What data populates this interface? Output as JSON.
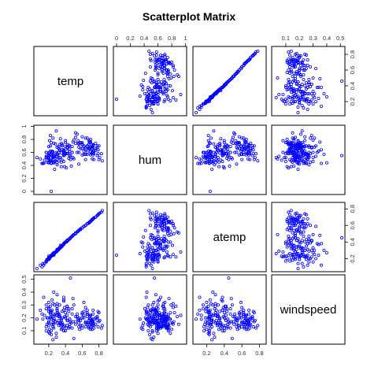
{
  "chart_data": {
    "type": "scatter",
    "title": "Scatterplot Matrix",
    "variables": [
      "temp",
      "hum",
      "atemp",
      "windspeed"
    ],
    "ranges": {
      "temp": [
        0.06,
        0.86
      ],
      "hum": [
        0.0,
        0.97
      ],
      "atemp": [
        0.08,
        0.84
      ],
      "windspeed": [
        0.02,
        0.51
      ]
    },
    "ticks": {
      "temp": [
        0.2,
        0.4,
        0.6,
        0.8
      ],
      "hum": [
        0.0,
        0.2,
        0.4,
        0.6,
        0.8,
        1.0
      ],
      "atemp": [
        0.2,
        0.4,
        0.6,
        0.8
      ],
      "windspeed": [
        0.1,
        0.2,
        0.3,
        0.4,
        0.5
      ]
    },
    "axis_positions": {
      "top": [
        "hum",
        "windspeed"
      ],
      "bottom": [
        "temp",
        "atemp"
      ],
      "left": [
        "hum",
        "windspeed"
      ],
      "right": [
        "temp",
        "atemp"
      ]
    },
    "point_style": {
      "shape": "open-circle",
      "color": "#0000ff"
    },
    "points": {
      "temp": [
        0.34,
        0.36,
        0.2,
        0.2,
        0.23,
        0.2,
        0.2,
        0.17,
        0.14,
        0.15,
        0.17,
        0.17,
        0.17,
        0.21,
        0.23,
        0.23,
        0.18,
        0.22,
        0.29,
        0.26,
        0.26,
        0.12,
        0.06,
        0.1,
        0.23,
        0.22,
        0.2,
        0.2,
        0.2,
        0.22,
        0.2,
        0.21,
        0.26,
        0.19,
        0.2,
        0.25,
        0.29,
        0.26,
        0.25,
        0.18,
        0.13,
        0.24,
        0.38,
        0.35,
        0.41,
        0.27,
        0.33,
        0.42,
        0.52,
        0.4,
        0.27,
        0.39,
        0.22,
        0.27,
        0.3,
        0.3,
        0.35,
        0.36,
        0.31,
        0.25,
        0.32,
        0.3,
        0.34,
        0.32,
        0.38,
        0.46,
        0.36,
        0.33,
        0.39,
        0.35,
        0.45,
        0.54,
        0.47,
        0.38,
        0.44,
        0.56,
        0.45,
        0.43,
        0.4,
        0.45,
        0.39,
        0.42,
        0.48,
        0.49,
        0.62,
        0.55,
        0.58,
        0.66,
        0.64,
        0.57,
        0.6,
        0.6,
        0.56,
        0.56,
        0.66,
        0.69,
        0.72,
        0.6,
        0.68,
        0.72,
        0.7,
        0.7,
        0.72,
        0.71,
        0.78,
        0.79,
        0.79,
        0.72,
        0.73,
        0.7,
        0.69,
        0.66,
        0.64,
        0.66,
        0.74,
        0.78,
        0.84,
        0.76,
        0.73,
        0.69,
        0.68,
        0.66,
        0.7,
        0.76,
        0.8,
        0.81,
        0.83,
        0.78,
        0.73,
        0.74,
        0.76,
        0.8,
        0.73,
        0.7,
        0.68,
        0.71,
        0.73,
        0.74,
        0.72,
        0.7,
        0.68,
        0.64,
        0.6,
        0.62,
        0.64,
        0.66,
        0.6,
        0.55,
        0.5,
        0.52,
        0.54,
        0.58,
        0.62,
        0.64,
        0.62,
        0.6,
        0.56,
        0.48,
        0.42,
        0.42,
        0.45,
        0.49,
        0.52,
        0.48,
        0.44,
        0.42,
        0.4,
        0.36,
        0.38,
        0.42,
        0.38,
        0.32,
        0.33,
        0.3,
        0.28,
        0.3,
        0.33,
        0.36,
        0.4,
        0.44,
        0.38,
        0.3,
        0.24,
        0.26,
        0.22,
        0.24,
        0.3,
        0.35,
        0.38,
        0.32,
        0.28,
        0.25,
        0.23,
        0.3,
        0.26,
        0.22,
        0.29,
        0.46,
        0.5,
        0.25,
        0.23
      ],
      "hum": [
        0.81,
        0.7,
        0.44,
        0.59,
        0.44,
        0.52,
        0.5,
        0.54,
        0.43,
        0.48,
        0.6,
        0.6,
        0.52,
        0.78,
        0.43,
        0.48,
        0.54,
        0.86,
        0.93,
        0.56,
        0.45,
        0.43,
        0.52,
        0.5,
        0.75,
        0.62,
        0.54,
        0.56,
        0.69,
        0.7,
        0.52,
        0.6,
        0.74,
        0.51,
        0.45,
        0.61,
        0.6,
        0.55,
        0.53,
        0.45,
        0.43,
        0.55,
        0.62,
        0.45,
        0.36,
        0.53,
        0.64,
        0.68,
        0.74,
        0.58,
        0.46,
        0.38,
        0.46,
        0.34,
        0.54,
        0.41,
        0.38,
        0.72,
        0.57,
        0.49,
        0.6,
        0.68,
        0.52,
        0.47,
        0.56,
        0.49,
        0.64,
        0.63,
        0.58,
        0.74,
        0.54,
        0.6,
        0.39,
        0.46,
        0.51,
        0.42,
        0.65,
        0.72,
        0.78,
        0.61,
        0.56,
        0.68,
        0.6,
        0.52,
        0.69,
        0.78,
        0.75,
        0.57,
        0.49,
        0.75,
        0.66,
        0.56,
        0.6,
        0.73,
        0.82,
        0.66,
        0.5,
        0.84,
        0.73,
        0.65,
        0.56,
        0.61,
        0.68,
        0.72,
        0.7,
        0.64,
        0.58,
        0.66,
        0.7,
        0.8,
        0.77,
        0.6,
        0.57,
        0.69,
        0.58,
        0.55,
        0.47,
        0.63,
        0.71,
        0.75,
        0.67,
        0.7,
        0.68,
        0.74,
        0.49,
        0.52,
        0.58,
        0.67,
        0.6,
        0.62,
        0.66,
        0.7,
        0.72,
        0.76,
        0.65,
        0.58,
        0.56,
        0.49,
        0.6,
        0.68,
        0.78,
        0.82,
        0.73,
        0.62,
        0.66,
        0.69,
        0.72,
        0.74,
        0.79,
        0.9,
        0.88,
        0.66,
        0.57,
        0.64,
        0.7,
        0.75,
        0.68,
        0.6,
        0.58,
        0.62,
        0.7,
        0.76,
        0.83,
        0.69,
        0.58,
        0.67,
        0.75,
        0.64,
        0.55,
        0.58,
        0.6,
        0.69,
        0.72,
        0.57,
        0.47,
        0.44,
        0.52,
        0.48,
        0.69,
        0.7,
        0.63,
        0.58,
        0.62,
        0.53,
        0.57,
        0.6,
        0.68,
        0.59,
        0.64,
        0.66,
        0.73,
        0.82,
        0.56,
        0.49,
        0.44,
        0.48,
        0.54,
        0.55,
        0.5,
        0.52,
        0.0,
        0.97,
        0.37,
        0.43
      ],
      "atemp": [
        0.36,
        0.35,
        0.19,
        0.21,
        0.23,
        0.23,
        0.21,
        0.16,
        0.12,
        0.14,
        0.16,
        0.17,
        0.17,
        0.22,
        0.23,
        0.23,
        0.19,
        0.22,
        0.28,
        0.25,
        0.25,
        0.1,
        0.08,
        0.12,
        0.23,
        0.22,
        0.2,
        0.19,
        0.21,
        0.22,
        0.2,
        0.2,
        0.24,
        0.19,
        0.2,
        0.25,
        0.28,
        0.25,
        0.24,
        0.18,
        0.14,
        0.24,
        0.37,
        0.34,
        0.4,
        0.27,
        0.32,
        0.41,
        0.5,
        0.4,
        0.27,
        0.39,
        0.23,
        0.26,
        0.3,
        0.29,
        0.34,
        0.35,
        0.3,
        0.26,
        0.31,
        0.3,
        0.33,
        0.32,
        0.38,
        0.45,
        0.36,
        0.33,
        0.39,
        0.35,
        0.44,
        0.52,
        0.46,
        0.38,
        0.43,
        0.54,
        0.44,
        0.42,
        0.4,
        0.44,
        0.39,
        0.41,
        0.47,
        0.48,
        0.59,
        0.53,
        0.56,
        0.62,
        0.6,
        0.55,
        0.57,
        0.57,
        0.54,
        0.54,
        0.62,
        0.64,
        0.67,
        0.57,
        0.63,
        0.67,
        0.65,
        0.65,
        0.67,
        0.66,
        0.72,
        0.73,
        0.73,
        0.67,
        0.68,
        0.65,
        0.64,
        0.62,
        0.6,
        0.62,
        0.69,
        0.72,
        0.78,
        0.7,
        0.68,
        0.64,
        0.63,
        0.62,
        0.65,
        0.7,
        0.74,
        0.75,
        0.76,
        0.72,
        0.68,
        0.69,
        0.7,
        0.74,
        0.68,
        0.65,
        0.63,
        0.66,
        0.68,
        0.69,
        0.67,
        0.65,
        0.63,
        0.6,
        0.57,
        0.59,
        0.6,
        0.62,
        0.57,
        0.53,
        0.49,
        0.51,
        0.52,
        0.55,
        0.59,
        0.6,
        0.59,
        0.57,
        0.54,
        0.47,
        0.42,
        0.42,
        0.44,
        0.48,
        0.5,
        0.47,
        0.43,
        0.42,
        0.4,
        0.36,
        0.38,
        0.42,
        0.38,
        0.32,
        0.33,
        0.3,
        0.28,
        0.3,
        0.33,
        0.36,
        0.4,
        0.43,
        0.38,
        0.3,
        0.24,
        0.26,
        0.22,
        0.24,
        0.3,
        0.35,
        0.38,
        0.32,
        0.28,
        0.25,
        0.23,
        0.31,
        0.27,
        0.23,
        0.29,
        0.45,
        0.49,
        0.26,
        0.24
      ],
      "windspeed": [
        0.16,
        0.25,
        0.25,
        0.16,
        0.19,
        0.09,
        0.17,
        0.27,
        0.36,
        0.22,
        0.3,
        0.13,
        0.1,
        0.08,
        0.25,
        0.07,
        0.2,
        0.29,
        0.22,
        0.18,
        0.15,
        0.23,
        0.19,
        0.26,
        0.1,
        0.24,
        0.32,
        0.17,
        0.14,
        0.2,
        0.27,
        0.11,
        0.12,
        0.2,
        0.28,
        0.16,
        0.08,
        0.23,
        0.21,
        0.15,
        0.19,
        0.26,
        0.34,
        0.18,
        0.12,
        0.22,
        0.16,
        0.29,
        0.21,
        0.1,
        0.3,
        0.14,
        0.23,
        0.19,
        0.16,
        0.27,
        0.11,
        0.2,
        0.24,
        0.13,
        0.18,
        0.31,
        0.15,
        0.21,
        0.26,
        0.17,
        0.12,
        0.22,
        0.28,
        0.14,
        0.19,
        0.23,
        0.16,
        0.1,
        0.25,
        0.2,
        0.13,
        0.18,
        0.24,
        0.15,
        0.21,
        0.27,
        0.12,
        0.17,
        0.22,
        0.19,
        0.14,
        0.26,
        0.16,
        0.11,
        0.2,
        0.23,
        0.18,
        0.13,
        0.15,
        0.21,
        0.17,
        0.24,
        0.12,
        0.19,
        0.16,
        0.22,
        0.14,
        0.18,
        0.2,
        0.13,
        0.25,
        0.17,
        0.15,
        0.11,
        0.19,
        0.23,
        0.16,
        0.21,
        0.12,
        0.18,
        0.14,
        0.2,
        0.17,
        0.22,
        0.13,
        0.16,
        0.19,
        0.15,
        0.24,
        0.18,
        0.12,
        0.21,
        0.16,
        0.14,
        0.2,
        0.17,
        0.23,
        0.13,
        0.18,
        0.15,
        0.26,
        0.19,
        0.11,
        0.22,
        0.16,
        0.28,
        0.14,
        0.2,
        0.17,
        0.24,
        0.12,
        0.19,
        0.3,
        0.15,
        0.21,
        0.18,
        0.25,
        0.13,
        0.32,
        0.2,
        0.16,
        0.27,
        0.14,
        0.22,
        0.19,
        0.35,
        0.17,
        0.23,
        0.12,
        0.29,
        0.2,
        0.15,
        0.26,
        0.18,
        0.33,
        0.14,
        0.21,
        0.38,
        0.17,
        0.24,
        0.3,
        0.16,
        0.2,
        0.27,
        0.13,
        0.22,
        0.34,
        0.18,
        0.25,
        0.15,
        0.29,
        0.19,
        0.36,
        0.23,
        0.17,
        0.31,
        0.21,
        0.26,
        0.4,
        0.2,
        0.05,
        0.51,
        0.04,
        0.03
      ]
    }
  }
}
